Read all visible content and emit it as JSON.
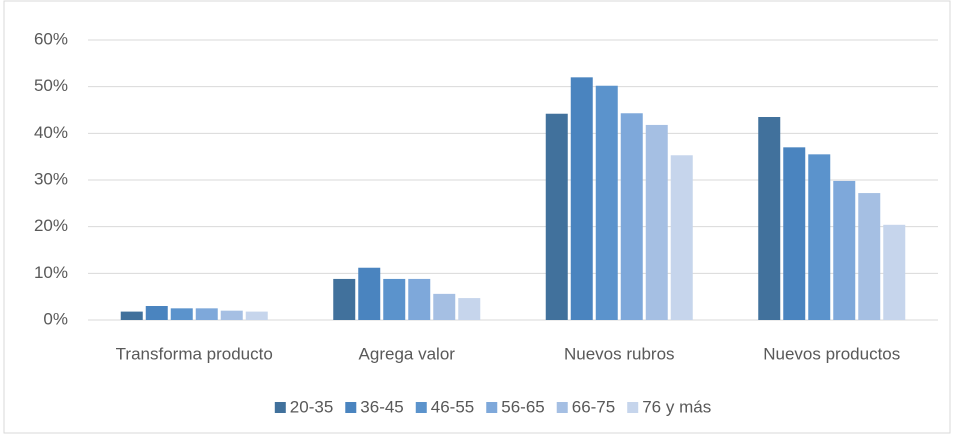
{
  "chart_data": {
    "type": "bar",
    "categories": [
      "Transforma producto",
      "Agrega valor",
      "Nuevos rubros",
      "Nuevos productos"
    ],
    "series": [
      {
        "name": "20-35",
        "color": "#41719c",
        "values": [
          1.8,
          8.8,
          44.2,
          43.5
        ]
      },
      {
        "name": "36-45",
        "color": "#4a84bf",
        "values": [
          3.0,
          11.2,
          52.0,
          37.0
        ]
      },
      {
        "name": "46-55",
        "color": "#5b93cc",
        "values": [
          2.5,
          8.8,
          50.2,
          35.5
        ]
      },
      {
        "name": "56-65",
        "color": "#7ea8da",
        "values": [
          2.5,
          8.8,
          44.3,
          29.8
        ]
      },
      {
        "name": "66-75",
        "color": "#a5bfe3",
        "values": [
          2.0,
          5.6,
          41.8,
          27.2
        ]
      },
      {
        "name": "76 y más",
        "color": "#c6d5ec",
        "values": [
          1.8,
          4.7,
          35.3,
          20.4
        ]
      }
    ],
    "ylim": [
      0,
      60
    ],
    "yticks": [
      {
        "value": 0,
        "label": "0%"
      },
      {
        "value": 10,
        "label": "10%"
      },
      {
        "value": 20,
        "label": "20%"
      },
      {
        "value": 30,
        "label": "30%"
      },
      {
        "value": 40,
        "label": "40%"
      },
      {
        "value": 50,
        "label": "50%"
      },
      {
        "value": 60,
        "label": "60%"
      }
    ],
    "grid": true,
    "legend": "bottom"
  }
}
